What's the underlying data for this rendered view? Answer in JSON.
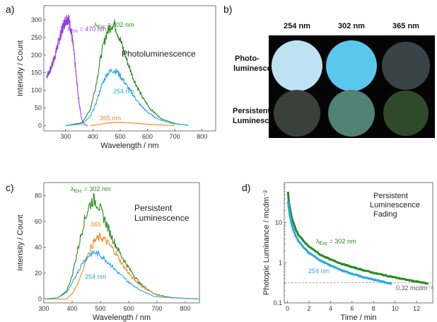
{
  "colors": {
    "purple": "#9a3de0",
    "green": "#2a8a1f",
    "blue": "#2aa8e8",
    "orange": "#f08a24",
    "axis": "#555555",
    "refline": "#888888"
  },
  "panel_a": {
    "label": "a)",
    "annotation": "Photoluminescence",
    "series_labels": {
      "purple_lambda": "λ",
      "purple_sub": "Em",
      "purple_value": " = 470 nm",
      "green_lambda": "λ",
      "green_sub": "Exc",
      "green_value": " = 302 nm",
      "blue": "254 nm",
      "orange": "365 nm"
    }
  },
  "panel_b": {
    "label": "b)",
    "columns": [
      "254 nm",
      "302 nm",
      "365 nm"
    ],
    "row1_line1": "Photo-",
    "row1_line2": "luminescence",
    "row2_line1": "Persistent",
    "row2_line2": "Luminescence",
    "swatch_colors": {
      "row1": [
        "#bfe2f2",
        "#5cc7ee",
        "#3a4448"
      ],
      "row2": [
        "#3a403c",
        "#4f8474",
        "#2f4a2a"
      ]
    }
  },
  "panel_c": {
    "label": "c)",
    "annotation_line1": "Persistent",
    "annotation_line2": "Luminescence",
    "series_labels": {
      "green_lambda": "λ",
      "green_sub": "Exc",
      "green_value": " = 302 nm",
      "orange": "365",
      "blue": "254 nm"
    }
  },
  "panel_d": {
    "label": "d)",
    "annotation_line1": "Persistent",
    "annotation_line2": "Luminescence",
    "annotation_line3": "Fading",
    "series_labels": {
      "green_lambda": "λ",
      "green_sub": "Exc",
      "green_value": " = 302 nm",
      "blue": "254 nm",
      "refline": "0.32 mcdm⁻²"
    }
  },
  "chart_data": [
    {
      "panel": "a",
      "type": "line",
      "xlabel": "Wavelength / nm",
      "ylabel": "Intensity / Count",
      "xlim": [
        220,
        850
      ],
      "ylim": [
        -15,
        340
      ],
      "xticks": [
        300,
        400,
        500,
        600,
        700,
        800
      ],
      "yticks": [
        0,
        50,
        100,
        150,
        200,
        250,
        300
      ],
      "series": [
        {
          "name": "λEm = 470 nm",
          "color": "purple",
          "x": [
            230,
            245,
            260,
            275,
            290,
            300,
            310,
            320,
            330,
            340,
            350,
            360,
            370,
            380
          ],
          "y": [
            140,
            160,
            195,
            240,
            280,
            300,
            305,
            270,
            210,
            130,
            60,
            15,
            3,
            0
          ]
        },
        {
          "name": "λExc = 302 nm",
          "color": "green",
          "x": [
            300,
            360,
            390,
            410,
            430,
            450,
            470,
            480,
            495,
            520,
            550,
            580,
            610,
            650,
            700,
            750
          ],
          "y": [
            0,
            8,
            45,
            110,
            200,
            262,
            288,
            285,
            255,
            195,
            130,
            82,
            48,
            20,
            6,
            1
          ]
        },
        {
          "name": "254 nm",
          "color": "blue",
          "x": [
            300,
            360,
            390,
            410,
            430,
            450,
            470,
            490,
            510,
            540,
            570,
            600,
            640,
            690,
            750
          ],
          "y": [
            0,
            5,
            25,
            60,
            110,
            145,
            158,
            152,
            130,
            95,
            62,
            38,
            18,
            6,
            1
          ]
        },
        {
          "name": "365 nm",
          "color": "orange",
          "x": [
            390,
            420,
            450,
            480,
            510,
            550,
            600,
            650,
            700
          ],
          "y": [
            0,
            3,
            7,
            9,
            9,
            7,
            4,
            2,
            0
          ]
        }
      ]
    },
    {
      "panel": "c",
      "type": "line",
      "xlabel": "Wavelength / nm",
      "ylabel": "Intensity / Count",
      "xlim": [
        300,
        850
      ],
      "ylim": [
        -3,
        90
      ],
      "xticks": [
        300,
        400,
        500,
        600,
        700,
        800
      ],
      "yticks": [
        0,
        20,
        40,
        60,
        80
      ],
      "series": [
        {
          "name": "λExc = 302 nm",
          "color": "green",
          "x": [
            300,
            350,
            380,
            400,
            420,
            440,
            460,
            475,
            490,
            510,
            540,
            570,
            600,
            640,
            690,
            750,
            850
          ],
          "y": [
            0,
            1,
            6,
            18,
            38,
            58,
            72,
            77,
            74,
            64,
            48,
            35,
            24,
            12,
            4,
            1,
            0
          ]
        },
        {
          "name": "365",
          "color": "orange",
          "x": [
            300,
            380,
            400,
            420,
            440,
            460,
            480,
            500,
            520,
            550,
            580,
            610,
            650,
            700,
            760,
            850
          ],
          "y": [
            0,
            0,
            4,
            12,
            24,
            37,
            45,
            48,
            45,
            37,
            26,
            17,
            9,
            3,
            1,
            0
          ]
        },
        {
          "name": "254 nm",
          "color": "blue",
          "x": [
            300,
            350,
            380,
            400,
            420,
            440,
            460,
            480,
            500,
            530,
            560,
            600,
            640,
            690,
            750,
            850
          ],
          "y": [
            0,
            1,
            5,
            12,
            21,
            29,
            34,
            36,
            34,
            28,
            21,
            13,
            7,
            2,
            1,
            0
          ]
        }
      ]
    },
    {
      "panel": "d",
      "type": "line",
      "xlabel": "Time / min",
      "ylabel": "Photopic Luminance / mcdm⁻²",
      "yscale": "log",
      "xlim": [
        -0.3,
        13.5
      ],
      "ylim": [
        0.1,
        100
      ],
      "xticks": [
        0,
        2,
        4,
        6,
        8,
        10,
        12
      ],
      "yticks": [
        0.1,
        1,
        10
      ],
      "ytick_labels": [
        "0.1",
        "1",
        "10"
      ],
      "reference_line": 0.32,
      "series": [
        {
          "name": "λExc = 302 nm",
          "color": "green",
          "x": [
            0.05,
            0.1,
            0.2,
            0.35,
            0.5,
            0.75,
            1,
            1.5,
            2,
            3,
            4,
            5,
            6,
            7,
            8,
            9,
            10,
            11,
            12,
            13.1
          ],
          "y": [
            60,
            38,
            24,
            15,
            10.5,
            7,
            5,
            3.4,
            2.5,
            1.6,
            1.2,
            0.95,
            0.78,
            0.66,
            0.56,
            0.49,
            0.43,
            0.38,
            0.34,
            0.3
          ]
        },
        {
          "name": "254 nm",
          "color": "blue",
          "x": [
            0.05,
            0.1,
            0.2,
            0.35,
            0.5,
            0.75,
            1,
            1.5,
            2,
            3,
            4,
            5,
            6,
            7,
            8,
            9,
            9.7
          ],
          "y": [
            35,
            24,
            16,
            10,
            7,
            4.8,
            3.5,
            2.4,
            1.75,
            1.15,
            0.85,
            0.65,
            0.53,
            0.44,
            0.38,
            0.33,
            0.3
          ]
        }
      ]
    }
  ]
}
